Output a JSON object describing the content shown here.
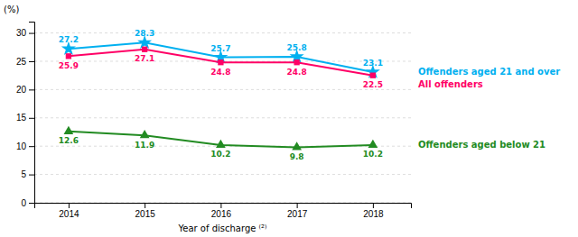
{
  "chart_data": {
    "type": "line",
    "x": [
      2014,
      2015,
      2016,
      2017,
      2018
    ],
    "series": [
      {
        "name": "Offenders aged 21 and over",
        "color": "#00b0f0",
        "marker": "star",
        "values": [
          27.2,
          28.3,
          25.7,
          25.8,
          23.1
        ]
      },
      {
        "name": "All offenders",
        "color": "#ff0066",
        "marker": "square",
        "values": [
          25.9,
          27.1,
          24.8,
          24.8,
          22.5
        ]
      },
      {
        "name": "Offenders aged below 21",
        "color": "#228B22",
        "marker": "triangle",
        "values": [
          12.6,
          11.9,
          10.2,
          9.8,
          10.2
        ]
      }
    ],
    "xlabel": "Year of discharge ⁽²⁾",
    "ylabel": "(%)",
    "xlim": [
      2013.55,
      2018.5
    ],
    "xticks": [
      2014,
      2015,
      2016,
      2017,
      2018
    ],
    "ylim": [
      0,
      32
    ],
    "yticks": [
      0,
      5,
      10,
      15,
      20,
      25,
      30
    ],
    "grid": true,
    "legend": "right",
    "data_labels": true
  }
}
